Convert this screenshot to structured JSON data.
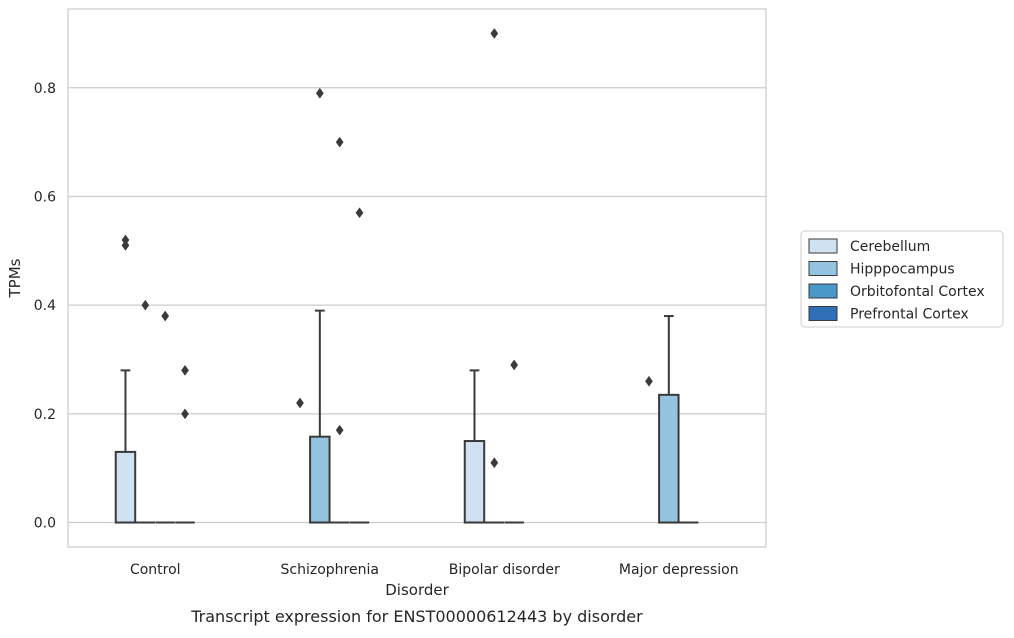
{
  "chart_data": {
    "type": "box",
    "title": "",
    "caption": "Transcript expression for ENST00000612443 by disorder",
    "xlabel": "Disorder",
    "ylabel": "TPMs",
    "ylim": [
      -0.045,
      0.945
    ],
    "yticks": [
      0.0,
      0.2,
      0.4,
      0.6,
      0.8
    ],
    "ytick_labels": [
      "0.0",
      "0.2",
      "0.4",
      "0.6",
      "0.8"
    ],
    "grid": "horizontal",
    "legend_position": "right",
    "categories": [
      "Control",
      "Schizophrenia",
      "Bipolar disorder",
      "Major depression"
    ],
    "series": [
      {
        "name": "Cerebellum",
        "color": "#d0e1f2",
        "boxes": [
          {
            "q1": 0,
            "median": 0,
            "q3": 0.13,
            "whisker_low": 0,
            "whisker_high": 0.28,
            "outliers": [
              0.51,
              0.52
            ]
          },
          null,
          {
            "q1": 0,
            "median": 0,
            "q3": 0.15,
            "whisker_low": 0,
            "whisker_high": 0.28,
            "outliers": []
          },
          null
        ]
      },
      {
        "name": "Hipppocampus",
        "color": "#94c4df",
        "boxes": [
          {
            "q1": 0,
            "median": 0,
            "q3": 0,
            "whisker_low": 0,
            "whisker_high": 0,
            "outliers": [
              0.4
            ]
          },
          {
            "q1": 0,
            "median": 0,
            "q3": 0.158,
            "whisker_low": 0,
            "whisker_high": 0.39,
            "outliers": [
              0.79
            ]
          },
          {
            "q1": 0,
            "median": 0,
            "q3": 0,
            "whisker_low": 0,
            "whisker_high": 0,
            "outliers": [
              0.9,
              0.11
            ]
          },
          {
            "q1": 0,
            "median": 0,
            "q3": 0.235,
            "whisker_low": 0,
            "whisker_high": 0.38,
            "outliers": []
          }
        ]
      },
      {
        "name": "Orbitofontal Cortex",
        "color": "#4a98c9",
        "boxes": [
          {
            "q1": 0,
            "median": 0,
            "q3": 0,
            "whisker_low": 0,
            "whisker_high": 0,
            "outliers": [
              0.38
            ]
          },
          {
            "q1": 0,
            "median": 0,
            "q3": 0,
            "whisker_low": 0,
            "whisker_high": 0,
            "outliers": [
              0.7,
              0.17
            ]
          },
          {
            "q1": 0,
            "median": 0,
            "q3": 0,
            "whisker_low": 0,
            "whisker_high": 0,
            "outliers": [
              0.29
            ]
          },
          {
            "q1": 0,
            "median": 0,
            "q3": 0,
            "whisker_low": 0,
            "whisker_high": 0,
            "outliers": []
          }
        ]
      },
      {
        "name": "Prefrontal Cortex",
        "color": "#2e6fb5",
        "boxes": [
          {
            "q1": 0,
            "median": 0,
            "q3": 0,
            "whisker_low": 0,
            "whisker_high": 0,
            "outliers": [
              0.28,
              0.2
            ]
          },
          {
            "q1": 0,
            "median": 0,
            "q3": 0,
            "whisker_low": 0,
            "whisker_high": 0,
            "outliers": [
              0.57
            ]
          },
          null,
          null
        ]
      }
    ],
    "extra_outliers": [
      {
        "category": "Schizophrenia",
        "series": "Cerebellum",
        "values": [
          0.22
        ]
      },
      {
        "category": "Major depression",
        "series": "Cerebellum",
        "values": [
          0.26
        ]
      }
    ]
  }
}
